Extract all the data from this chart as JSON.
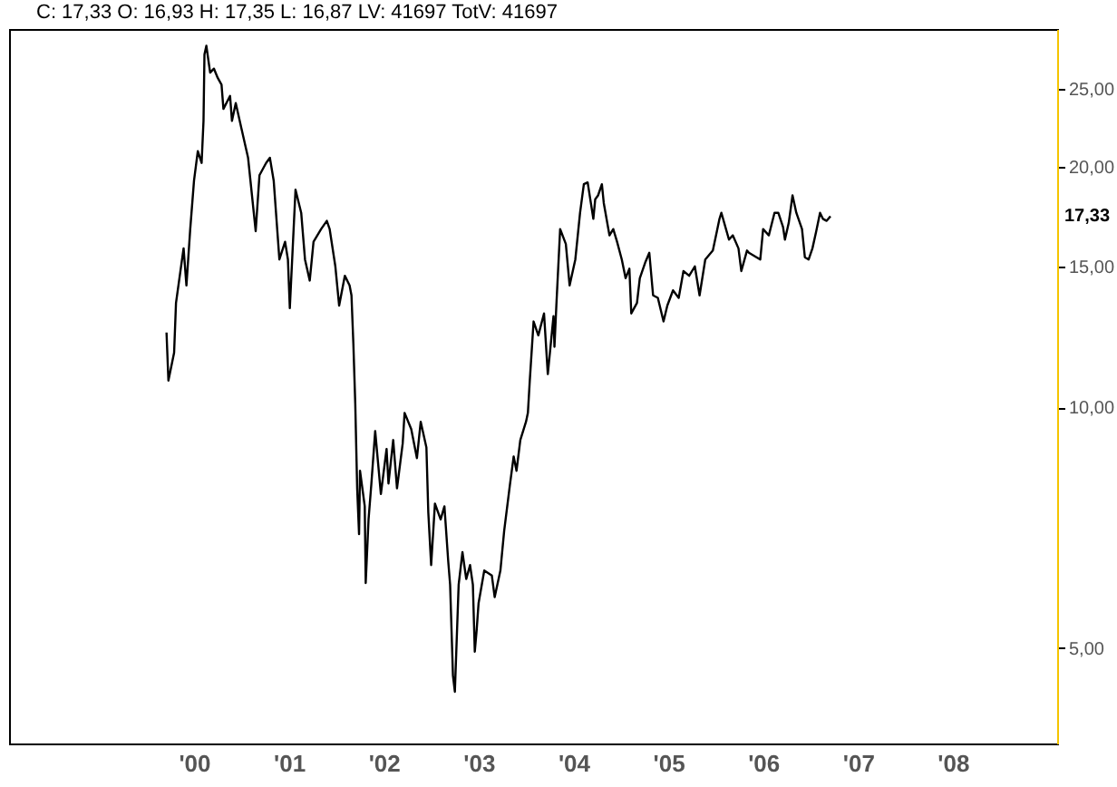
{
  "chart_data": {
    "type": "line",
    "annotations": [
      "C: 17,33 O: 16,93 H: 17,35 L: 16,87 LV: 41697 TotV: 41697",
      "17,33"
    ],
    "x": [
      1999.71,
      1999.73,
      1999.79,
      1999.81,
      1999.89,
      1999.92,
      1999.96,
      2000.0,
      2000.04,
      2000.08,
      2000.1,
      2000.11,
      2000.13,
      2000.17,
      2000.21,
      2000.25,
      2000.29,
      2000.31,
      2000.38,
      2000.4,
      2000.44,
      2000.5,
      2000.57,
      2000.63,
      2000.65,
      2000.69,
      2000.76,
      2000.8,
      2000.84,
      2000.9,
      2000.96,
      2000.99,
      2001.01,
      2001.07,
      2001.13,
      2001.17,
      2001.22,
      2001.26,
      2001.34,
      2001.4,
      2001.43,
      2001.49,
      2001.53,
      2001.59,
      2001.64,
      2001.66,
      2001.68,
      2001.7,
      2001.72,
      2001.74,
      2001.75,
      2001.8,
      2001.81,
      2001.84,
      2001.87,
      2001.91,
      2001.97,
      2002.03,
      2002.05,
      2002.1,
      2002.14,
      2002.2,
      2002.22,
      2002.29,
      2002.35,
      2002.39,
      2002.45,
      2002.47,
      2002.5,
      2002.54,
      2002.6,
      2002.64,
      2002.68,
      2002.7,
      2002.73,
      2002.75,
      2002.79,
      2002.83,
      2002.87,
      2002.91,
      2002.94,
      2002.96,
      2002.98,
      2003.0,
      2003.06,
      2003.14,
      2003.17,
      2003.23,
      2003.27,
      2003.33,
      2003.37,
      2003.4,
      2003.44,
      2003.5,
      2003.52,
      2003.54,
      2003.58,
      2003.63,
      2003.69,
      2003.73,
      2003.79,
      2003.8,
      2003.82,
      2003.86,
      2003.92,
      2003.96,
      2004.02,
      2004.07,
      2004.11,
      2004.15,
      2004.21,
      2004.23,
      2004.26,
      2004.3,
      2004.32,
      2004.38,
      2004.42,
      2004.46,
      2004.51,
      2004.55,
      2004.59,
      2004.61,
      2004.67,
      2004.7,
      2004.76,
      2004.8,
      2004.84,
      2004.89,
      2004.95,
      2004.99,
      2005.05,
      2005.11,
      2005.16,
      2005.22,
      2005.28,
      2005.33,
      2005.39,
      2005.47,
      2005.54,
      2005.56,
      2005.64,
      2005.68,
      2005.74,
      2005.77,
      2005.83,
      2005.85,
      2005.93,
      2005.97,
      2006.0,
      2006.06,
      2006.12,
      2006.16,
      2006.21,
      2006.23,
      2006.27,
      2006.31,
      2006.35,
      2006.41,
      2006.44,
      2006.48,
      2006.52,
      2006.56,
      2006.6,
      2006.63,
      2006.67,
      2006.71
    ],
    "series": [
      {
        "color": "#000000",
        "values": [
          12.4,
          10.8,
          11.7,
          13.5,
          15.8,
          14.2,
          16.7,
          19.2,
          20.9,
          20.2,
          22.8,
          27.6,
          28.3,
          26.2,
          26.5,
          25.8,
          25.3,
          23.6,
          24.5,
          22.8,
          24.0,
          22.3,
          20.5,
          17.5,
          16.6,
          19.5,
          20.2,
          20.5,
          19.2,
          15.3,
          16.1,
          15.3,
          13.3,
          18.7,
          17.5,
          15.3,
          14.4,
          16.1,
          16.7,
          17.1,
          16.7,
          15.0,
          13.4,
          14.6,
          14.2,
          13.8,
          12.0,
          10.1,
          7.92,
          6.94,
          8.33,
          7.52,
          6.03,
          7.24,
          8.03,
          9.34,
          7.79,
          8.87,
          8.03,
          9.1,
          7.92,
          9.01,
          9.84,
          9.39,
          8.64,
          9.59,
          8.91,
          7.39,
          6.35,
          7.58,
          7.24,
          7.52,
          6.42,
          6.0,
          4.62,
          4.41,
          6.0,
          6.59,
          6.1,
          6.35,
          6.0,
          4.95,
          5.27,
          5.69,
          6.25,
          6.16,
          5.79,
          6.25,
          7.01,
          7.99,
          8.68,
          8.33,
          9.1,
          9.59,
          9.84,
          10.8,
          12.8,
          12.3,
          13.1,
          11.0,
          13.0,
          11.9,
          13.4,
          16.7,
          16.0,
          14.2,
          15.3,
          17.5,
          19.0,
          19.1,
          17.2,
          18.2,
          18.4,
          19.0,
          18.0,
          16.4,
          16.7,
          16.1,
          15.3,
          14.5,
          14.9,
          13.1,
          13.5,
          14.5,
          15.2,
          15.6,
          13.8,
          13.7,
          12.8,
          13.4,
          14.0,
          13.7,
          14.8,
          14.6,
          15.0,
          13.8,
          15.3,
          15.7,
          17.2,
          17.5,
          16.2,
          16.4,
          15.8,
          14.8,
          15.7,
          15.6,
          15.4,
          15.3,
          16.7,
          16.4,
          17.5,
          17.5,
          16.8,
          16.2,
          17.0,
          18.4,
          17.5,
          16.7,
          15.4,
          15.3,
          15.8,
          16.6,
          17.5,
          17.2,
          17.1,
          17.33
        ]
      }
    ],
    "xlim": [
      1998.05,
      2009.1
    ],
    "xticks": [
      {
        "value": 2000,
        "label": "'00"
      },
      {
        "value": 2001,
        "label": "'01"
      },
      {
        "value": 2002,
        "label": "'02"
      },
      {
        "value": 2003,
        "label": "'03"
      },
      {
        "value": 2004,
        "label": "'04"
      },
      {
        "value": 2005,
        "label": "'05"
      },
      {
        "value": 2006,
        "label": "'06"
      },
      {
        "value": 2007,
        "label": "'07"
      },
      {
        "value": 2008,
        "label": "'08"
      }
    ],
    "ylim": [
      3.8,
      29.7
    ],
    "yticks": [
      {
        "value": 5,
        "label": "5,00"
      },
      {
        "value": 10,
        "label": "10,00"
      },
      {
        "value": 15,
        "label": "15,00"
      },
      {
        "value": 20,
        "label": "20,00"
      },
      {
        "value": 25,
        "label": "25,00"
      }
    ],
    "log": "y",
    "grid": false
  }
}
